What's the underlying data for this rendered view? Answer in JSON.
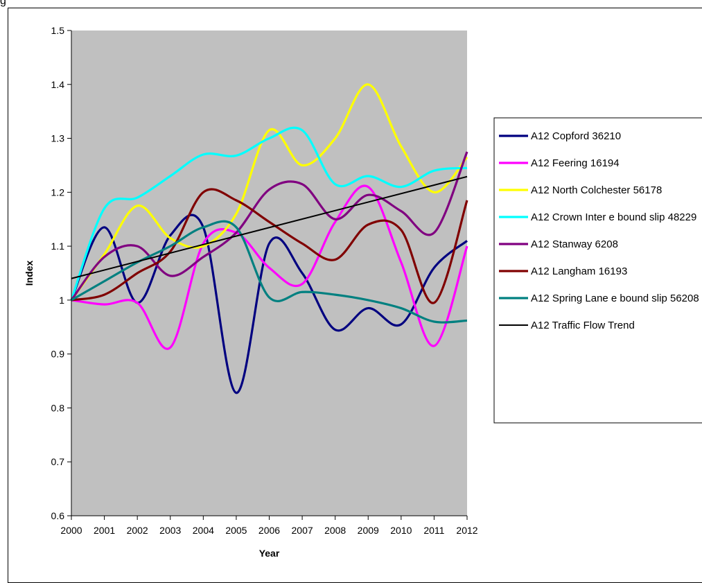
{
  "top_fragment": "g",
  "chart_data": {
    "type": "line",
    "title": "",
    "xlabel": "Year",
    "ylabel": "Index",
    "x": [
      2000,
      2001,
      2002,
      2003,
      2004,
      2005,
      2006,
      2007,
      2008,
      2009,
      2010,
      2011,
      2012
    ],
    "ylim": [
      0.6,
      1.5
    ],
    "yticks": [
      "0.6",
      "0.7",
      "0.8",
      "0.9",
      "1",
      "1.1",
      "1.2",
      "1.3",
      "1.4",
      "1.5"
    ],
    "grid": false,
    "plot_background": "#c0c0c0",
    "legend_position": "right",
    "series": [
      {
        "name": "A12 Copford 36210",
        "color": "#000080",
        "values": [
          1.0,
          1.135,
          0.995,
          1.12,
          1.135,
          0.828,
          1.105,
          1.05,
          0.945,
          0.985,
          0.955,
          1.06,
          1.11
        ]
      },
      {
        "name": "A12 Feering 16194",
        "color": "#ff00ff",
        "values": [
          1.0,
          0.992,
          0.995,
          0.912,
          1.105,
          1.125,
          1.06,
          1.03,
          1.145,
          1.21,
          1.07,
          0.915,
          1.1
        ]
      },
      {
        "name": "A12 North Colchester 56178",
        "color": "#ffff00",
        "values": [
          1.0,
          1.085,
          1.175,
          1.115,
          1.1,
          1.16,
          1.315,
          1.25,
          1.3,
          1.4,
          1.285,
          1.2,
          1.265
        ]
      },
      {
        "name": "A12 Crown Inter e bound slip 48229",
        "color": "#00ffff",
        "values": [
          1.0,
          1.17,
          1.19,
          1.23,
          1.27,
          1.268,
          1.3,
          1.315,
          1.215,
          1.23,
          1.21,
          1.24,
          1.245
        ]
      },
      {
        "name": "A12 Stanway 6208",
        "color": "#800080",
        "values": [
          1.0,
          1.08,
          1.1,
          1.045,
          1.08,
          1.125,
          1.205,
          1.215,
          1.15,
          1.195,
          1.165,
          1.125,
          1.275
        ]
      },
      {
        "name": "A12 Langham 16193",
        "color": "#800000",
        "values": [
          1.0,
          1.01,
          1.05,
          1.09,
          1.2,
          1.185,
          1.145,
          1.105,
          1.075,
          1.14,
          1.13,
          0.995,
          1.185
        ]
      },
      {
        "name": "A12 Spring Lane e bound slip 56208",
        "color": "#008080",
        "values": [
          1.0,
          1.035,
          1.07,
          1.1,
          1.135,
          1.135,
          1.005,
          1.015,
          1.01,
          1.0,
          0.985,
          0.96,
          0.962
        ]
      },
      {
        "name": "A12 Traffic Flow Trend",
        "color": "#000000",
        "values": [
          1.04,
          1.055,
          1.071,
          1.087,
          1.103,
          1.118,
          1.134,
          1.15,
          1.166,
          1.181,
          1.197,
          1.213,
          1.229
        ]
      }
    ]
  }
}
